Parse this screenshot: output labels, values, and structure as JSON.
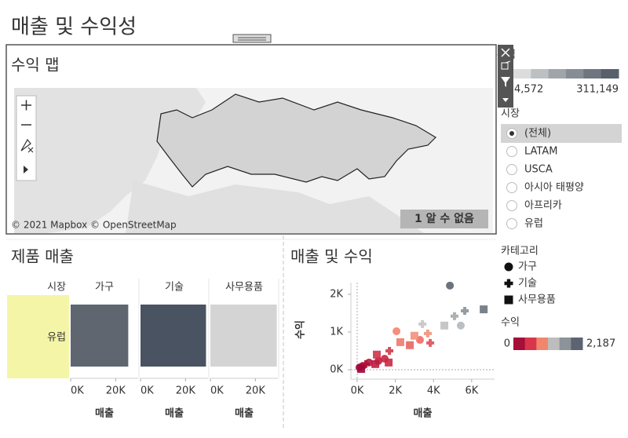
{
  "dashboard_title": "매출 및 수익성",
  "map": {
    "title": "수익 맵",
    "attribution": "© 2021 Mapbox © OpenStreetMap",
    "unknown_badge": "1 알 수 없음"
  },
  "profit_legend": {
    "title": "수익",
    "min_label": "4,572",
    "max_label": "311,149",
    "colors": [
      "#dcdcdc",
      "#bcc0c3",
      "#a0a5aa",
      "#878d94",
      "#6f767f",
      "#58606c"
    ]
  },
  "market_filter": {
    "title": "시장",
    "options": [
      "(전체)",
      "LATAM",
      "USCA",
      "아시아 태평양",
      "아프리카",
      "유럽"
    ],
    "selected": 0
  },
  "category_legend": {
    "title": "카테고리",
    "items": [
      {
        "label": "가구",
        "shape": "circle"
      },
      {
        "label": "기술",
        "shape": "plus"
      },
      {
        "label": "사무용품",
        "shape": "square"
      }
    ]
  },
  "scatter_profit_legend": {
    "title": "수익",
    "min_label": "0",
    "max_label": "2,187",
    "colors": [
      "#a50f3a",
      "#d9364a",
      "#f0876c",
      "#bdbdbd",
      "#8c9399",
      "#5b6470"
    ]
  },
  "chart_data": [
    {
      "type": "bar",
      "title": "제품 매출",
      "row_header": "시장",
      "row_label": "유럽",
      "categories": [
        "가구",
        "기술",
        "사무용품"
      ],
      "values": [
        25600,
        29100,
        29500
      ],
      "colors": [
        "#5f6670",
        "#4a5361",
        "#d4d4d4"
      ],
      "xlim": [
        0,
        30000
      ],
      "xticks": [
        {
          "value": 0,
          "label": "0K"
        },
        {
          "value": 20000,
          "label": "20K"
        }
      ],
      "xlabel": "매출"
    },
    {
      "type": "scatter",
      "title": "매출 및 수익",
      "xlabel": "매출",
      "ylabel": "수익",
      "xlim": [
        -330,
        7200
      ],
      "ylim": [
        -250,
        2310
      ],
      "xticks": [
        {
          "value": 0,
          "label": "0K"
        },
        {
          "value": 2000,
          "label": "2K"
        },
        {
          "value": 4000,
          "label": "4K"
        },
        {
          "value": 6000,
          "label": "6K"
        }
      ],
      "yticks": [
        {
          "value": 0,
          "label": "0K"
        },
        {
          "value": 1000,
          "label": "1K"
        },
        {
          "value": 2000,
          "label": "2K"
        }
      ],
      "series": [
        {
          "name": "가구",
          "marker": "circle",
          "x": [
            4860,
            5430,
            2060,
            3290,
            1440,
            620,
            290,
            120,
            1110
          ],
          "values": [
            2230,
            1170,
            1020,
            790,
            290,
            190,
            100,
            60,
            230
          ],
          "colors": [
            "#5b6470",
            "#b4b8bc",
            "#f4826e",
            "#ef6b63",
            "#c92542",
            "#b8163c",
            "#a8103a",
            "#a0093a",
            "#c01e40"
          ]
        },
        {
          "name": "기술",
          "marker": "plus",
          "x": [
            5640,
            5100,
            3420,
            3700,
            3830,
            1690,
            450
          ],
          "values": [
            1560,
            1420,
            1210,
            960,
            710,
            500,
            150
          ],
          "colors": [
            "#8c9196",
            "#a4a8ac",
            "#c4c4c4",
            "#f1907a",
            "#e14f55",
            "#d0384a",
            "#b01239"
          ]
        },
        {
          "name": "사무용품",
          "marker": "square",
          "x": [
            6630,
            4570,
            2260,
            2760,
            3000,
            1650,
            1030,
            950,
            210
          ],
          "values": [
            1600,
            1170,
            730,
            650,
            900,
            190,
            400,
            150,
            20
          ],
          "colors": [
            "#6c737c",
            "#c0c0c0",
            "#ee7a6a",
            "#e76560",
            "#f3907c",
            "#c82a45",
            "#cf3448",
            "#bb1a3f",
            "#a0093a"
          ]
        }
      ]
    }
  ]
}
